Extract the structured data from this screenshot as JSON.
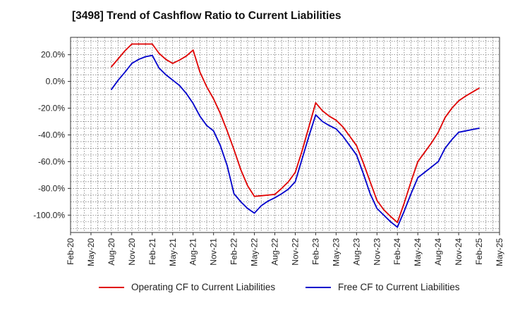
{
  "chart_data": {
    "type": "line",
    "title": "[3498]  Trend of Cashflow Ratio to Current Liabilities",
    "xlabel": "",
    "ylabel": "",
    "x_tick_labels": [
      "Feb-20",
      "May-20",
      "Aug-20",
      "Nov-20",
      "Feb-21",
      "May-21",
      "Aug-21",
      "Nov-21",
      "Feb-22",
      "May-22",
      "Aug-22",
      "Nov-22",
      "Feb-23",
      "May-23",
      "Aug-23",
      "Nov-23",
      "Feb-24",
      "May-24",
      "Aug-24",
      "Nov-24",
      "Feb-25",
      "May-25"
    ],
    "y_ticks": [
      20,
      0,
      -20,
      -40,
      -60,
      -80,
      -100
    ],
    "y_tick_labels": [
      "20.0%",
      "0.0%",
      "-20.0%",
      "-40.0%",
      "-60.0%",
      "-80.0%",
      "-100.0%"
    ],
    "ylim": [
      -113,
      33
    ],
    "grid": true,
    "legend_position": "bottom",
    "series": [
      {
        "name": "Operating CF to Current Liabilities",
        "color": "#e00000",
        "x": [
          "Aug-20",
          "Sep-20",
          "Oct-20",
          "Nov-20",
          "Dec-20",
          "Jan-21",
          "Feb-21",
          "Mar-21",
          "Apr-21",
          "May-21",
          "Jun-21",
          "Jul-21",
          "Aug-21",
          "Sep-21",
          "Oct-21",
          "Nov-21",
          "Dec-21",
          "Jan-22",
          "Feb-22",
          "Mar-22",
          "Apr-22",
          "May-22",
          "Jun-22",
          "Jul-22",
          "Aug-22",
          "Sep-22",
          "Oct-22",
          "Nov-22",
          "Dec-22",
          "Jan-23",
          "Feb-23",
          "Mar-23",
          "Apr-23",
          "May-23",
          "Jun-23",
          "Jul-23",
          "Aug-23",
          "Sep-23",
          "Oct-23",
          "Nov-23",
          "Dec-23",
          "Jan-24",
          "Feb-24",
          "Mar-24",
          "Apr-24",
          "May-24",
          "Jun-24",
          "Jul-24",
          "Aug-24",
          "Sep-24",
          "Oct-24",
          "Nov-24",
          "Dec-24",
          "Jan-25",
          "Feb-25"
        ],
        "values": [
          11,
          17,
          23,
          28,
          28,
          28,
          28,
          21,
          16.5,
          13.5,
          16,
          19,
          23.5,
          7,
          -4,
          -13,
          -24,
          -37,
          -51,
          -66,
          -78,
          -86,
          -85.5,
          -85,
          -84.5,
          -80,
          -75,
          -68,
          -52,
          -34,
          -16,
          -22,
          -26,
          -29,
          -34,
          -41,
          -48,
          -61,
          -75,
          -89,
          -96,
          -101,
          -105.5,
          -91,
          -75,
          -60,
          -53,
          -46,
          -38,
          -27,
          -20,
          -14.5,
          -11,
          -8,
          -5
        ]
      },
      {
        "name": "Free CF to Current Liabilities",
        "color": "#0000cc",
        "x": [
          "Aug-20",
          "Sep-20",
          "Oct-20",
          "Nov-20",
          "Dec-20",
          "Jan-21",
          "Feb-21",
          "Mar-21",
          "Apr-21",
          "May-21",
          "Jun-21",
          "Jul-21",
          "Aug-21",
          "Sep-21",
          "Oct-21",
          "Nov-21",
          "Dec-21",
          "Jan-22",
          "Feb-22",
          "Mar-22",
          "Apr-22",
          "May-22",
          "Jun-22",
          "Jul-22",
          "Aug-22",
          "Sep-22",
          "Oct-22",
          "Nov-22",
          "Dec-22",
          "Jan-23",
          "Feb-23",
          "Mar-23",
          "Apr-23",
          "May-23",
          "Jun-23",
          "Jul-23",
          "Aug-23",
          "Sep-23",
          "Oct-23",
          "Nov-23",
          "Dec-23",
          "Jan-24",
          "Feb-24",
          "Mar-24",
          "Apr-24",
          "May-24",
          "Jun-24",
          "Jul-24",
          "Aug-24",
          "Sep-24",
          "Oct-24",
          "Nov-24",
          "Dec-24",
          "Jan-25",
          "Feb-25"
        ],
        "values": [
          -6,
          1,
          7,
          13.5,
          16.5,
          18.5,
          19.5,
          10,
          5,
          1,
          -3,
          -9,
          -16.5,
          -26,
          -33,
          -37,
          -48,
          -63,
          -84,
          -90,
          -95,
          -98.5,
          -93,
          -89.5,
          -87,
          -84,
          -80.5,
          -75,
          -58,
          -41,
          -25,
          -30,
          -33,
          -35.5,
          -41,
          -48,
          -55,
          -69,
          -84,
          -95,
          -100,
          -105,
          -109,
          -97,
          -84,
          -72,
          -68,
          -64,
          -60,
          -50,
          -43.5,
          -38,
          -37,
          -36,
          -35
        ]
      }
    ]
  }
}
